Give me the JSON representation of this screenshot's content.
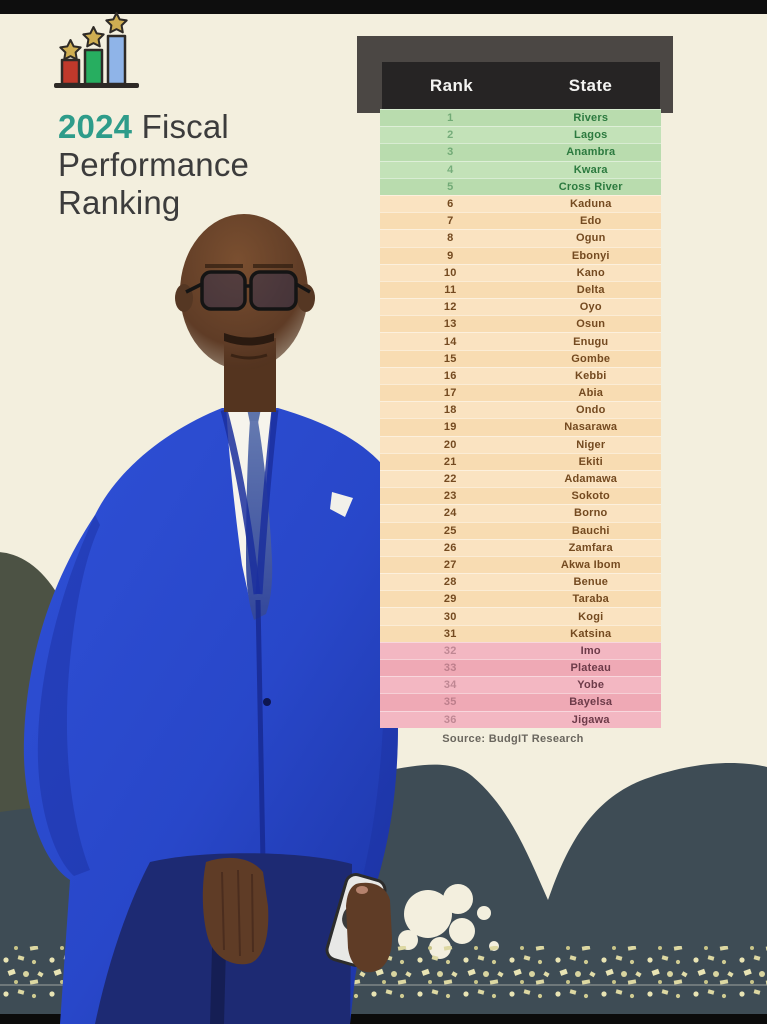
{
  "title": {
    "year": "2024",
    "rest": "Fiscal",
    "line2": "Performance",
    "line3": "Ranking"
  },
  "icon": {
    "name": "bar-chart-with-stars"
  },
  "table": {
    "col_rank": "Rank",
    "col_state": "State",
    "rows": [
      {
        "rank": "1",
        "state": "Rivers",
        "tier": "green"
      },
      {
        "rank": "2",
        "state": "Lagos",
        "tier": "green"
      },
      {
        "rank": "3",
        "state": "Anambra",
        "tier": "green"
      },
      {
        "rank": "4",
        "state": "Kwara",
        "tier": "green"
      },
      {
        "rank": "5",
        "state": "Cross River",
        "tier": "green"
      },
      {
        "rank": "6",
        "state": "Kaduna",
        "tier": "orange"
      },
      {
        "rank": "7",
        "state": "Edo",
        "tier": "orange"
      },
      {
        "rank": "8",
        "state": "Ogun",
        "tier": "orange"
      },
      {
        "rank": "9",
        "state": "Ebonyi",
        "tier": "orange"
      },
      {
        "rank": "10",
        "state": "Kano",
        "tier": "orange"
      },
      {
        "rank": "11",
        "state": "Delta",
        "tier": "orange"
      },
      {
        "rank": "12",
        "state": "Oyo",
        "tier": "orange"
      },
      {
        "rank": "13",
        "state": "Osun",
        "tier": "orange"
      },
      {
        "rank": "14",
        "state": "Enugu",
        "tier": "orange"
      },
      {
        "rank": "15",
        "state": "Gombe",
        "tier": "orange"
      },
      {
        "rank": "16",
        "state": "Kebbi",
        "tier": "orange"
      },
      {
        "rank": "17",
        "state": "Abia",
        "tier": "orange"
      },
      {
        "rank": "18",
        "state": "Ondo",
        "tier": "orange"
      },
      {
        "rank": "19",
        "state": "Nasarawa",
        "tier": "orange"
      },
      {
        "rank": "20",
        "state": "Niger",
        "tier": "orange"
      },
      {
        "rank": "21",
        "state": "Ekiti",
        "tier": "orange"
      },
      {
        "rank": "22",
        "state": "Adamawa",
        "tier": "orange"
      },
      {
        "rank": "23",
        "state": "Sokoto",
        "tier": "orange"
      },
      {
        "rank": "24",
        "state": "Borno",
        "tier": "orange"
      },
      {
        "rank": "25",
        "state": "Bauchi",
        "tier": "orange"
      },
      {
        "rank": "26",
        "state": "Zamfara",
        "tier": "orange"
      },
      {
        "rank": "27",
        "state": "Akwa Ibom",
        "tier": "orange"
      },
      {
        "rank": "28",
        "state": "Benue",
        "tier": "orange"
      },
      {
        "rank": "29",
        "state": "Taraba",
        "tier": "orange"
      },
      {
        "rank": "30",
        "state": "Kogi",
        "tier": "orange"
      },
      {
        "rank": "31",
        "state": "Katsina",
        "tier": "orange"
      },
      {
        "rank": "32",
        "state": "Imo",
        "tier": "pink"
      },
      {
        "rank": "33",
        "state": "Plateau",
        "tier": "pink"
      },
      {
        "rank": "34",
        "state": "Yobe",
        "tier": "pink"
      },
      {
        "rank": "35",
        "state": "Bayelsa",
        "tier": "pink"
      },
      {
        "rank": "36",
        "state": "Jigawa",
        "tier": "pink"
      }
    ]
  },
  "source": "Source: BudgIT Research",
  "colors": {
    "accent_teal": "#2e9c8a",
    "tier_green": "#b9dcae",
    "tier_orange": "#f8dcb2",
    "tier_pink": "#efa9b5",
    "header_bg": "#262424",
    "frame_gray": "#4b4744",
    "background_cream": "#f3efde",
    "background_dark": "#3e4c55",
    "suit_blue": "#2847c9"
  },
  "chart_data": {
    "type": "table",
    "title": "2024 Fiscal Performance Ranking",
    "columns": [
      "Rank",
      "State"
    ],
    "rows": [
      [
        1,
        "Rivers"
      ],
      [
        2,
        "Lagos"
      ],
      [
        3,
        "Anambra"
      ],
      [
        4,
        "Kwara"
      ],
      [
        5,
        "Cross River"
      ],
      [
        6,
        "Kaduna"
      ],
      [
        7,
        "Edo"
      ],
      [
        8,
        "Ogun"
      ],
      [
        9,
        "Ebonyi"
      ],
      [
        10,
        "Kano"
      ],
      [
        11,
        "Delta"
      ],
      [
        12,
        "Oyo"
      ],
      [
        13,
        "Osun"
      ],
      [
        14,
        "Enugu"
      ],
      [
        15,
        "Gombe"
      ],
      [
        16,
        "Kebbi"
      ],
      [
        17,
        "Abia"
      ],
      [
        18,
        "Ondo"
      ],
      [
        19,
        "Nasarawa"
      ],
      [
        20,
        "Niger"
      ],
      [
        21,
        "Ekiti"
      ],
      [
        22,
        "Adamawa"
      ],
      [
        23,
        "Sokoto"
      ],
      [
        24,
        "Borno"
      ],
      [
        25,
        "Bauchi"
      ],
      [
        26,
        "Zamfara"
      ],
      [
        27,
        "Akwa Ibom"
      ],
      [
        28,
        "Benue"
      ],
      [
        29,
        "Taraba"
      ],
      [
        30,
        "Kogi"
      ],
      [
        31,
        "Katsina"
      ],
      [
        32,
        "Imo"
      ],
      [
        33,
        "Plateau"
      ],
      [
        34,
        "Yobe"
      ],
      [
        35,
        "Bayelsa"
      ],
      [
        36,
        "Jigawa"
      ]
    ],
    "tier_color_bands": {
      "ranks_1_5": "green",
      "ranks_6_31": "orange",
      "ranks_32_36": "pink"
    },
    "source": "Source: BudgIT Research"
  }
}
